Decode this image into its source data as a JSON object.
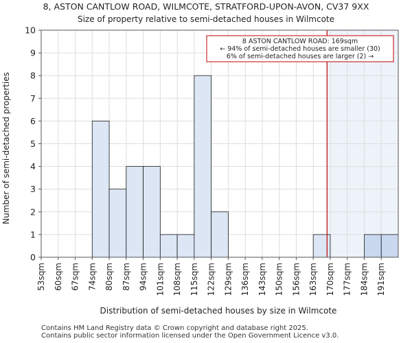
{
  "chart_data": {
    "type": "bar",
    "title": "8, ASTON CANTLOW ROAD, WILMCOTE, STRATFORD-UPON-AVON, CV37 9XX",
    "subtitle": "Size of property relative to semi-detached houses in Wilmcote",
    "xlabel": "Distribution of semi-detached houses by size in Wilmcote",
    "ylabel": "Number of semi-detached properties",
    "ylim": [
      0,
      10
    ],
    "yticks": [
      0,
      1,
      2,
      3,
      4,
      5,
      6,
      7,
      8,
      9,
      10
    ],
    "categories": [
      "53sqm",
      "60sqm",
      "67sqm",
      "74sqm",
      "80sqm",
      "87sqm",
      "94sqm",
      "101sqm",
      "108sqm",
      "115sqm",
      "122sqm",
      "129sqm",
      "136sqm",
      "143sqm",
      "150sqm",
      "156sqm",
      "163sqm",
      "170sqm",
      "177sqm",
      "184sqm",
      "191sqm"
    ],
    "values": [
      0,
      0,
      0,
      6,
      3,
      4,
      4,
      1,
      1,
      8,
      2,
      0,
      0,
      0,
      0,
      0,
      1,
      0,
      0,
      1,
      1
    ],
    "subject_size_sqm": 169,
    "annotation": {
      "line1": "8 ASTON CANTLOW ROAD: 169sqm",
      "line2": "← 94% of semi-detached houses are smaller (30)",
      "line3": "6% of semi-detached houses are larger (2) →"
    },
    "colors": {
      "bar_fill": "#dce6f4",
      "bar_fill_highlight": "#c9d8ef",
      "bar_stroke": "#1a1a1a",
      "marker_line": "#c00000",
      "shade": "#eef3fa",
      "grid": "#dddddd"
    }
  },
  "footer": {
    "line1": "Contains HM Land Registry data © Crown copyright and database right 2025.",
    "line2": "Contains public sector information licensed under the Open Government Licence v3.0."
  }
}
